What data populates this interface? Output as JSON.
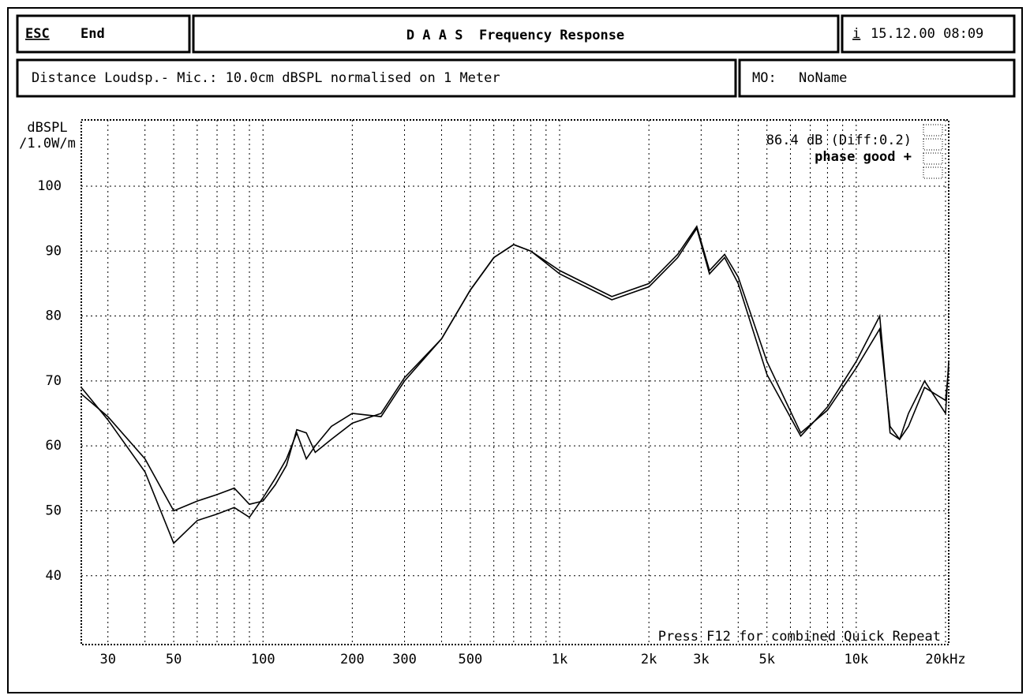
{
  "header": {
    "esc": "ESC",
    "end": "End",
    "title": "D A A S  Frequency Response",
    "info": "i",
    "datetime": "15.12.00 08:09",
    "distance": "Distance Loudsp.- Mic.: 10.0cm dBSPL normalised on 1 Meter",
    "mo": "MO:",
    "name": "NoName"
  },
  "chart_data": {
    "type": "line",
    "ylabel": [
      "dBSPL",
      "/1.0W/m"
    ],
    "annotations": [
      "86.4 dB (Diff:0.2)",
      "phase good +",
      "Press F12 for combined Quick Repeat"
    ],
    "xlog": true,
    "grid": true,
    "xlim": [
      24.4,
      20500
    ],
    "ylim": [
      29.4,
      110.2
    ],
    "xticks": [
      30,
      50,
      100,
      200,
      300,
      500,
      {
        "value": 1000,
        "label": "1k"
      },
      {
        "value": 2000,
        "label": "2k"
      },
      {
        "value": 3000,
        "label": "3k"
      },
      {
        "value": 5000,
        "label": "5k"
      },
      {
        "value": 10000,
        "label": "10k"
      },
      {
        "value": 20000,
        "label": "20kHz"
      }
    ],
    "xgrid_minor": [
      40,
      60,
      70,
      80,
      90,
      400,
      600,
      700,
      800,
      900,
      4000,
      6000,
      7000,
      8000,
      9000
    ],
    "yticks": [
      40,
      50,
      60,
      70,
      80,
      90,
      100
    ],
    "x": [
      24.4,
      30,
      40,
      50,
      60,
      70,
      80,
      90,
      100,
      110,
      120,
      130,
      140,
      150,
      170,
      200,
      250,
      300,
      400,
      500,
      600,
      700,
      800,
      1000,
      1500,
      2000,
      2500,
      2900,
      3200,
      3600,
      4000,
      5000,
      6500,
      8000,
      10000,
      12000,
      13000,
      14000,
      15000,
      17000,
      20000,
      20500
    ],
    "series": [
      {
        "color": "#000000",
        "values": [
          69,
          64,
          56,
          45,
          48.5,
          49.5,
          50.5,
          49,
          52,
          55,
          58,
          62,
          58,
          60,
          63,
          65,
          64.5,
          70,
          76.5,
          84,
          89,
          91,
          90,
          87,
          83,
          85,
          89.5,
          93.8,
          87,
          89.5,
          86,
          73,
          62,
          65.5,
          72,
          78,
          63,
          61,
          63,
          69,
          67,
          72
        ]
      },
      {
        "color": "#000000",
        "values": [
          68,
          64.5,
          58,
          50,
          51.5,
          52.5,
          53.5,
          51,
          51.5,
          54,
          57,
          62.5,
          62,
          59,
          61,
          63.5,
          65,
          70.5,
          76.5,
          84,
          89,
          91,
          90,
          86.5,
          82.5,
          84.5,
          89,
          93.5,
          86.5,
          89,
          85,
          71,
          61.5,
          66,
          73,
          80,
          62,
          61,
          65,
          70,
          65,
          73
        ]
      }
    ]
  }
}
